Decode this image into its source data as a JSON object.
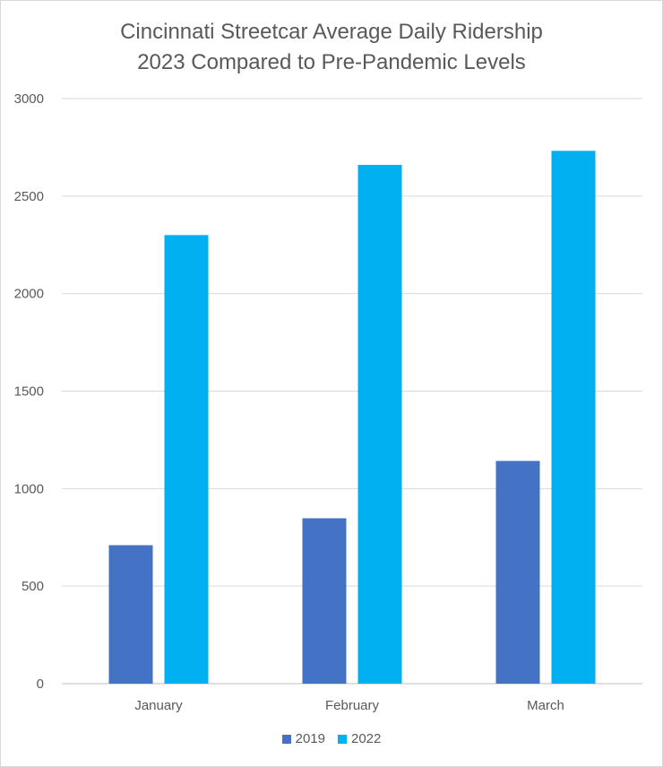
{
  "chart_data": {
    "type": "bar",
    "title_line1": "Cincinnati Streetcar Average Daily Ridership",
    "title_line2": "2023 Compared to Pre-Pandemic Levels",
    "xlabel": "",
    "ylabel": "",
    "categories": [
      "January",
      "February",
      "March"
    ],
    "series": [
      {
        "name": "2019",
        "color": "#4472C4",
        "values": [
          710,
          848,
          1142
        ]
      },
      {
        "name": "2022",
        "color": "#00B0F0",
        "values": [
          2300,
          2660,
          2732
        ]
      }
    ],
    "ylim": [
      0,
      3000
    ],
    "yticks": [
      "0",
      "500",
      "1000",
      "1500",
      "2000",
      "2500",
      "3000"
    ],
    "grid": true,
    "legend": "bottom"
  }
}
